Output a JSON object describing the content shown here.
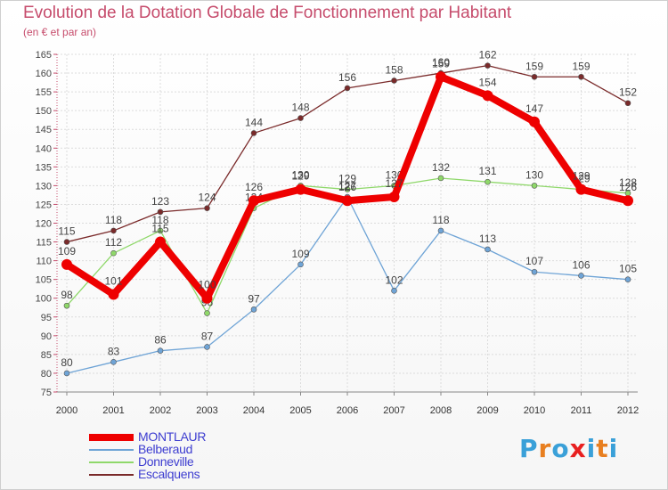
{
  "title": "Evolution de la Dotation Globale de Fonctionnement par Habitant",
  "subtitle": "(en € et par an)",
  "logo": {
    "letters": [
      "P",
      "r",
      "o",
      "x",
      "i",
      "t",
      "i"
    ],
    "colors": [
      "#3aa0d8",
      "#e87f20",
      "#3aa0d8",
      "#e82020",
      "#3aa0d8",
      "#e87f20",
      "#3aa0d8"
    ]
  },
  "chart_data": {
    "type": "line",
    "title": "Evolution de la Dotation Globale de Fonctionnement par Habitant",
    "ylabel": "(en € et par an)",
    "xlabel": "",
    "ylim": [
      75,
      165
    ],
    "ytick_step": 5,
    "x": [
      "2000",
      "2001",
      "2002",
      "2003",
      "2004",
      "2005",
      "2006",
      "2007",
      "2008",
      "2009",
      "2010",
      "2011",
      "2012"
    ],
    "series": [
      {
        "name": "Escalquens",
        "color": "#7a2a2a",
        "values": [
          115,
          118,
          123,
          124,
          144,
          148,
          156,
          158,
          160,
          162,
          159,
          159,
          152
        ]
      },
      {
        "name": "Donneville",
        "color": "#8fd86a",
        "values": [
          98,
          112,
          118,
          96,
          124,
          130,
          129,
          130,
          132,
          131,
          130,
          129,
          128
        ]
      },
      {
        "name": "Belberaud",
        "color": "#6fa4d6",
        "values": [
          80,
          83,
          86,
          87,
          97,
          109,
          127,
          102,
          118,
          113,
          107,
          106,
          105
        ]
      },
      {
        "name": "MONTLAUR",
        "color": "#ee0000",
        "values": [
          109,
          101,
          115,
          100,
          126,
          129,
          126,
          127,
          159,
          154,
          147,
          129,
          126
        ]
      }
    ],
    "legend_order": [
      "MONTLAUR",
      "Belberaud",
      "Donneville",
      "Escalquens"
    ],
    "grid": true,
    "legend": "bottom-left"
  }
}
